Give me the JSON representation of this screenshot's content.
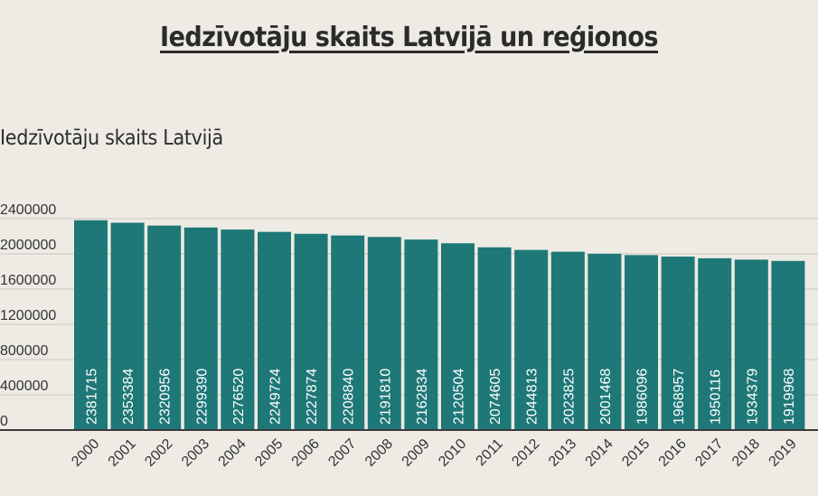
{
  "page": {
    "title": "Iedzīvotāju skaits Latvijā un reģionos"
  },
  "chart_data": {
    "type": "bar",
    "title": "Iedzīvotāju skaits Latvijā",
    "xlabel": "",
    "ylabel": "",
    "ylim": [
      0,
      2400000
    ],
    "yticks": [
      0,
      400000,
      800000,
      1200000,
      1600000,
      2000000,
      2400000
    ],
    "grid": true,
    "bar_color": "#1e7877",
    "categories": [
      "2000",
      "2001",
      "2002",
      "2003",
      "2004",
      "2005",
      "2006",
      "2007",
      "2008",
      "2009",
      "2010",
      "2011",
      "2012",
      "2013",
      "2014",
      "2015",
      "2016",
      "2017",
      "2018",
      "2019"
    ],
    "values": [
      2381715,
      2353384,
      2320956,
      2299390,
      2276520,
      2249724,
      2227874,
      2208840,
      2191810,
      2162834,
      2120504,
      2074605,
      2044813,
      2023825,
      2001468,
      1986096,
      1968957,
      1950116,
      1934379,
      1919968
    ]
  }
}
